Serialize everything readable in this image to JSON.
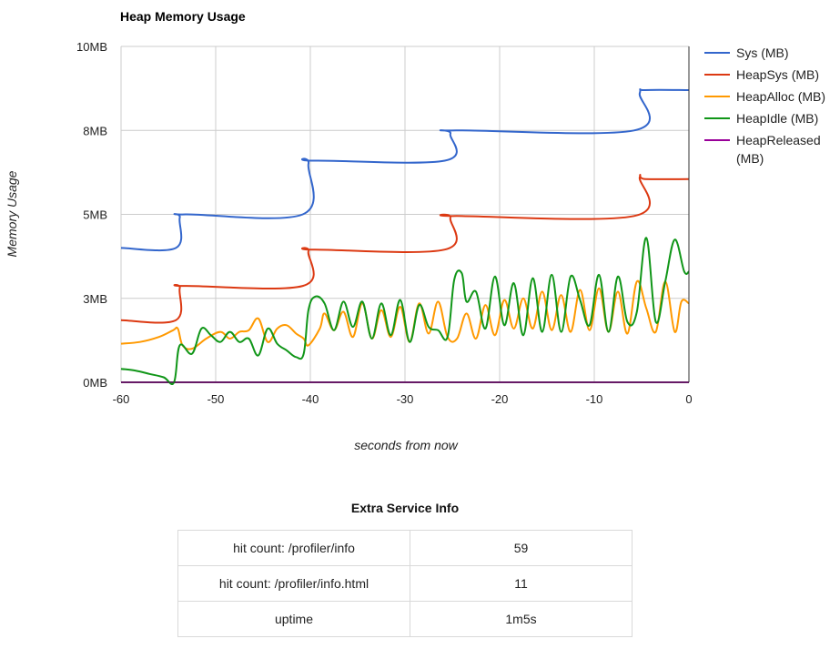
{
  "chart_data": {
    "type": "line",
    "title": "Heap Memory Usage",
    "xlabel": "seconds from now",
    "ylabel": "Memory Usage",
    "xlim": [
      -60,
      0
    ],
    "ylim": [
      0,
      10
    ],
    "x_ticks": [
      "-60",
      "-50",
      "-40",
      "-30",
      "-20",
      "-10",
      "0"
    ],
    "x_tick_values": [
      -60,
      -50,
      -40,
      -30,
      -20,
      -10,
      0
    ],
    "y_ticks": [
      "0MB",
      "3MB",
      "5MB",
      "8MB",
      "10MB"
    ],
    "y_tick_values": [
      0,
      2.5,
      5,
      7.5,
      10
    ],
    "grid": true,
    "legend_position": "right",
    "series": [
      {
        "name": "Sys (MB)",
        "color": "#3366cc",
        "points": [
          [
            -60,
            4.0
          ],
          [
            -54.2,
            4.0
          ],
          [
            -53.8,
            4.9
          ],
          [
            -53.2,
            5.0
          ],
          [
            -40.8,
            5.0
          ],
          [
            -40.2,
            6.5
          ],
          [
            -39.6,
            6.6
          ],
          [
            -25.8,
            6.6
          ],
          [
            -25.2,
            7.4
          ],
          [
            -24.6,
            7.5
          ],
          [
            -5.8,
            7.5
          ],
          [
            -5.2,
            8.6
          ],
          [
            -4.6,
            8.7
          ],
          [
            0,
            8.7
          ]
        ]
      },
      {
        "name": "HeapSys (MB)",
        "color": "#dc3912",
        "points": [
          [
            -60,
            1.85
          ],
          [
            -54.2,
            1.85
          ],
          [
            -53.8,
            2.8
          ],
          [
            -53.2,
            2.87
          ],
          [
            -40.8,
            2.87
          ],
          [
            -40.2,
            3.9
          ],
          [
            -39.6,
            3.95
          ],
          [
            -25.8,
            3.95
          ],
          [
            -25.2,
            4.9
          ],
          [
            -24.6,
            4.95
          ],
          [
            -5.8,
            4.95
          ],
          [
            -5.2,
            6.1
          ],
          [
            -4.6,
            6.05
          ],
          [
            0,
            6.05
          ]
        ]
      },
      {
        "name": "HeapAlloc (MB)",
        "color": "#ff9900",
        "points": [
          [
            -60,
            1.15
          ],
          [
            -58,
            1.2
          ],
          [
            -56,
            1.35
          ],
          [
            -54.5,
            1.55
          ],
          [
            -54,
            1.6
          ],
          [
            -53.5,
            1.1
          ],
          [
            -52.5,
            1.0
          ],
          [
            -51,
            1.3
          ],
          [
            -49.5,
            1.5
          ],
          [
            -48.5,
            1.3
          ],
          [
            -47.5,
            1.5
          ],
          [
            -46.5,
            1.55
          ],
          [
            -45.5,
            1.9
          ],
          [
            -44.5,
            1.2
          ],
          [
            -43.5,
            1.6
          ],
          [
            -42.5,
            1.7
          ],
          [
            -41.5,
            1.45
          ],
          [
            -40.7,
            1.3
          ],
          [
            -40.2,
            1.1
          ],
          [
            -39,
            1.6
          ],
          [
            -38.5,
            2.05
          ],
          [
            -37.5,
            1.55
          ],
          [
            -36.5,
            2.1
          ],
          [
            -35.5,
            1.35
          ],
          [
            -34.5,
            2.35
          ],
          [
            -33.5,
            1.3
          ],
          [
            -32.5,
            2.15
          ],
          [
            -31.5,
            1.35
          ],
          [
            -30.5,
            2.25
          ],
          [
            -29.5,
            1.2
          ],
          [
            -28.5,
            2.35
          ],
          [
            -27.5,
            1.45
          ],
          [
            -26.5,
            2.4
          ],
          [
            -25.5,
            1.35
          ],
          [
            -24.5,
            1.3
          ],
          [
            -23.5,
            2.05
          ],
          [
            -22.5,
            1.3
          ],
          [
            -21.5,
            2.3
          ],
          [
            -20.5,
            1.4
          ],
          [
            -19.5,
            2.45
          ],
          [
            -18.5,
            1.6
          ],
          [
            -17.5,
            2.5
          ],
          [
            -16.5,
            1.6
          ],
          [
            -15.5,
            2.7
          ],
          [
            -14.5,
            1.55
          ],
          [
            -13.5,
            2.6
          ],
          [
            -12.5,
            1.5
          ],
          [
            -11.5,
            2.75
          ],
          [
            -10.5,
            1.55
          ],
          [
            -9.5,
            2.8
          ],
          [
            -8.5,
            1.5
          ],
          [
            -7.5,
            2.7
          ],
          [
            -6.5,
            1.45
          ],
          [
            -5.5,
            3.0
          ],
          [
            -4.5,
            2.2
          ],
          [
            -3.5,
            1.5
          ],
          [
            -2.5,
            3.0
          ],
          [
            -1.5,
            1.5
          ],
          [
            -0.8,
            2.4
          ],
          [
            0,
            2.35
          ]
        ]
      },
      {
        "name": "HeapIdle (MB)",
        "color": "#109618",
        "points": [
          [
            -60,
            0.4
          ],
          [
            -58.5,
            0.35
          ],
          [
            -57,
            0.25
          ],
          [
            -55.5,
            0.15
          ],
          [
            -54.4,
            0.0
          ],
          [
            -53.8,
            1.1
          ],
          [
            -52.5,
            0.85
          ],
          [
            -51.5,
            1.6
          ],
          [
            -50.5,
            1.4
          ],
          [
            -49.5,
            1.2
          ],
          [
            -48.5,
            1.5
          ],
          [
            -47.5,
            1.2
          ],
          [
            -46.5,
            1.3
          ],
          [
            -45.5,
            0.8
          ],
          [
            -44.5,
            1.6
          ],
          [
            -43.5,
            1.15
          ],
          [
            -42.5,
            0.95
          ],
          [
            -41.5,
            0.75
          ],
          [
            -40.7,
            0.85
          ],
          [
            -40.2,
            2.15
          ],
          [
            -39.5,
            2.55
          ],
          [
            -38.5,
            2.35
          ],
          [
            -37.5,
            1.55
          ],
          [
            -36.5,
            2.4
          ],
          [
            -35.5,
            1.65
          ],
          [
            -34.5,
            2.4
          ],
          [
            -33.5,
            1.3
          ],
          [
            -32.5,
            2.35
          ],
          [
            -31.5,
            1.4
          ],
          [
            -30.5,
            2.45
          ],
          [
            -29.5,
            1.2
          ],
          [
            -28.5,
            2.3
          ],
          [
            -27.5,
            1.65
          ],
          [
            -26.5,
            1.55
          ],
          [
            -25.5,
            1.35
          ],
          [
            -24.8,
            3.05
          ],
          [
            -24,
            3.25
          ],
          [
            -23.5,
            2.4
          ],
          [
            -22.5,
            2.7
          ],
          [
            -21.5,
            1.6
          ],
          [
            -20.5,
            3.15
          ],
          [
            -19.5,
            1.7
          ],
          [
            -18.5,
            2.95
          ],
          [
            -17.5,
            1.4
          ],
          [
            -16.5,
            3.1
          ],
          [
            -15.5,
            1.5
          ],
          [
            -14.5,
            3.2
          ],
          [
            -13.5,
            1.5
          ],
          [
            -12.5,
            3.15
          ],
          [
            -11.5,
            2.45
          ],
          [
            -10.5,
            1.7
          ],
          [
            -9.5,
            3.2
          ],
          [
            -8.5,
            1.5
          ],
          [
            -7.5,
            3.15
          ],
          [
            -6.5,
            1.8
          ],
          [
            -5.5,
            2.1
          ],
          [
            -4.5,
            4.3
          ],
          [
            -3.5,
            1.8
          ],
          [
            -2.5,
            3.0
          ],
          [
            -1.5,
            4.25
          ],
          [
            -0.5,
            3.3
          ],
          [
            0,
            3.3
          ]
        ]
      },
      {
        "name": "HeapReleased (MB)",
        "color": "#990099",
        "points": [
          [
            -60,
            0
          ],
          [
            0,
            0
          ]
        ]
      }
    ]
  },
  "legend": [
    {
      "lines": [
        "Sys (MB)"
      ],
      "color": "#3366cc"
    },
    {
      "lines": [
        "HeapSys (MB)"
      ],
      "color": "#dc3912"
    },
    {
      "lines": [
        "HeapAlloc (MB)"
      ],
      "color": "#ff9900"
    },
    {
      "lines": [
        "HeapIdle (MB)"
      ],
      "color": "#109618"
    },
    {
      "lines": [
        "HeapReleased",
        "(MB)"
      ],
      "color": "#990099"
    }
  ],
  "service_info": {
    "title": "Extra Service Info",
    "rows": [
      {
        "label": "hit count: /profiler/info",
        "value": "59"
      },
      {
        "label": "hit count: /profiler/info.html",
        "value": "11"
      },
      {
        "label": "uptime",
        "value": "1m5s"
      }
    ]
  }
}
